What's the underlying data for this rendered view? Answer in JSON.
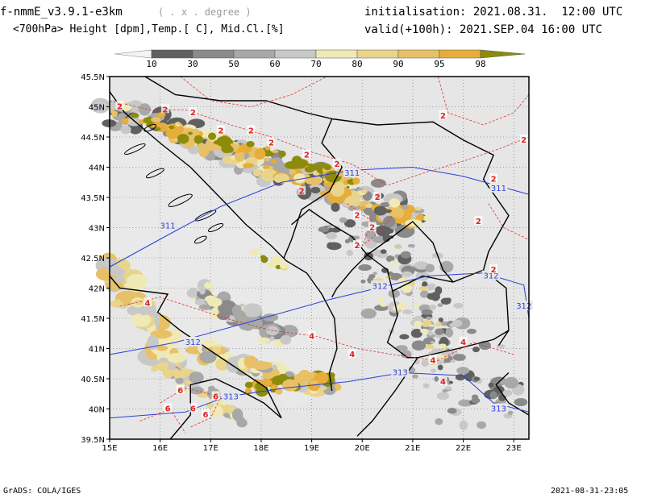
{
  "header": {
    "model": "f-nmmE_v3.9.1-e3km",
    "units_hint": "( . x . degree )",
    "fields": "<700hPa> Height [dpm],Temp.[ C], Mid.Cl.[%]",
    "init": "initialisation: 2021.08.31.  12:00 UTC",
    "valid": "valid(+100h): 2021.SEP.04 16:00 UTC"
  },
  "colorbar": {
    "levels": [
      "10",
      "30",
      "50",
      "60",
      "70",
      "80",
      "90",
      "95",
      "98"
    ],
    "colors": [
      "#f4f4f4",
      "#606060",
      "#8a8a8a",
      "#a8a8a8",
      "#c8c8c8",
      "#efe9b5",
      "#e9d48c",
      "#e8c066",
      "#e6ad3a",
      "#8c8c0a"
    ]
  },
  "map": {
    "lon_labels": [
      "15E",
      "16E",
      "17E",
      "18E",
      "19E",
      "20E",
      "21E",
      "22E",
      "23E"
    ],
    "lat_labels": [
      "39.5N",
      "40N",
      "40.5N",
      "41N",
      "41.5N",
      "42N",
      "42.5N",
      "43N",
      "43.5N",
      "44N",
      "44.5N",
      "45N",
      "45.5N"
    ],
    "lon_range": [
      15,
      23.3
    ],
    "lat_range": [
      39.5,
      45.5
    ],
    "height_contours": [
      {
        "value": "311",
        "label_points": [
          [
            16.15,
            43.03
          ],
          [
            19.8,
            43.9
          ],
          [
            22.7,
            43.65
          ]
        ]
      },
      {
        "value": "312",
        "label_points": [
          [
            16.65,
            41.1
          ],
          [
            20.35,
            42.03
          ],
          [
            22.55,
            42.2
          ],
          [
            23.2,
            41.7
          ]
        ]
      },
      {
        "value": "313",
        "label_points": [
          [
            17.4,
            40.2
          ],
          [
            20.75,
            40.6
          ],
          [
            22.7,
            40.0
          ]
        ]
      }
    ],
    "temp_labels": [
      {
        "value": "2",
        "points": [
          [
            15.2,
            45.0
          ],
          [
            16.1,
            44.95
          ],
          [
            16.65,
            44.9
          ],
          [
            17.2,
            44.6
          ],
          [
            17.8,
            44.6
          ],
          [
            18.2,
            44.4
          ],
          [
            18.9,
            44.2
          ],
          [
            19.5,
            44.05
          ],
          [
            18.8,
            43.6
          ],
          [
            19.9,
            43.2
          ],
          [
            20.3,
            43.5
          ],
          [
            21.6,
            44.85
          ],
          [
            22.6,
            43.8
          ],
          [
            22.3,
            43.1
          ],
          [
            22.6,
            42.3
          ],
          [
            23.2,
            44.45
          ],
          [
            19.9,
            42.7
          ],
          [
            20.2,
            43.0
          ]
        ]
      },
      {
        "value": "4",
        "points": [
          [
            15.75,
            41.75
          ],
          [
            19.0,
            41.2
          ],
          [
            19.8,
            40.9
          ],
          [
            21.4,
            40.8
          ],
          [
            22.0,
            41.1
          ],
          [
            21.6,
            40.45
          ]
        ]
      },
      {
        "value": "6",
        "points": [
          [
            16.4,
            40.3
          ],
          [
            16.65,
            40.0
          ],
          [
            17.1,
            40.2
          ],
          [
            16.9,
            39.9
          ],
          [
            16.15,
            40.0
          ]
        ]
      }
    ]
  },
  "footer": {
    "left": "GrADS: COLA/IGES",
    "right": "2021-08-31-23:05"
  }
}
